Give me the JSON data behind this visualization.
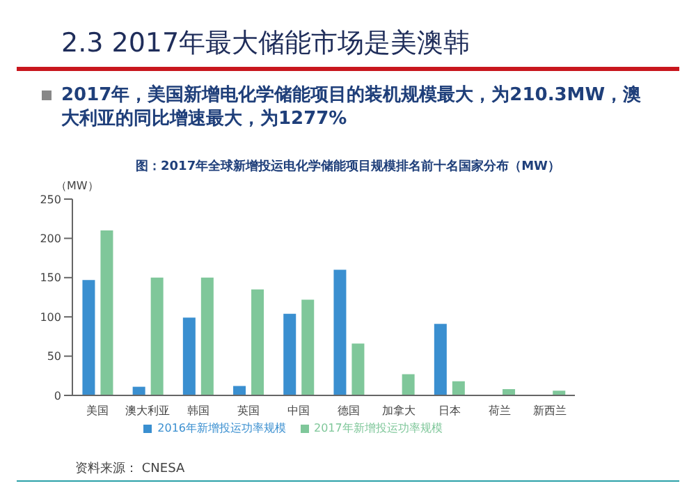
{
  "chart_data": {
    "type": "bar",
    "title": "2.3 2017年最大储能市场是美澳韩",
    "subtitle": "2017年，美国新增电化学储能项目的装机规模最大，为210.3MW，澳大利亚的同比增速最大，为1277%",
    "annotations": [
      "图：2017年全球新增投运电化学储能项目规模排名前十名国家分布（MW）",
      "资料来源： CNESA"
    ],
    "ylabel": "（MW）",
    "categories": [
      "美国",
      "澳大利亚",
      "韩国",
      "英国",
      "中国",
      "德国",
      "加拿大",
      "日本",
      "荷兰",
      "新西兰"
    ],
    "series": [
      {
        "name": "2016年新增投运功率规模",
        "color": "#3a8fd0",
        "values": [
          147,
          11,
          99,
          12,
          104,
          160,
          0,
          91,
          0,
          null
        ]
      },
      {
        "name": "2017年新增投运功率规模",
        "color": "#7fc79a",
        "values": [
          210,
          150,
          150,
          135,
          122,
          66,
          27,
          18,
          8,
          6
        ]
      }
    ],
    "ylim": [
      0,
      250
    ],
    "yticks": [
      0,
      50,
      100,
      150,
      200,
      250
    ],
    "legend": "bottom"
  }
}
